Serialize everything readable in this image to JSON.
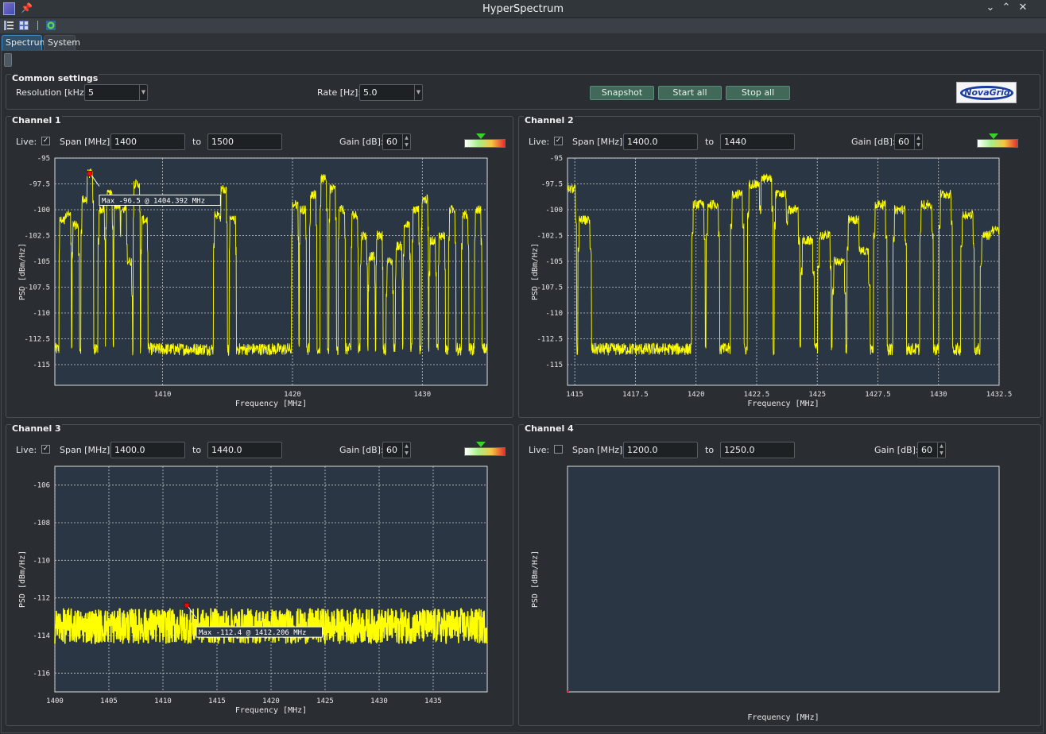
{
  "app": {
    "title": "HyperSpectrum"
  },
  "tabs": [
    {
      "label": "Spectrum",
      "active": true
    },
    {
      "label": "System",
      "active": false
    }
  ],
  "common": {
    "title": "Common settings",
    "resolution_label": "Resolution [kHz]:",
    "resolution_value": "5",
    "rate_label": "Rate [Hz]:",
    "rate_value": "5.0",
    "snapshot": "Snapshot",
    "start_all": "Start all",
    "stop_all": "Stop all",
    "logo_text": "NovaGrid"
  },
  "labels": {
    "live": "Live:",
    "span": "Span [MHz]:",
    "to": "to",
    "gain": "Gain [dB]:"
  },
  "channels": [
    {
      "title": "Channel 1",
      "live": true,
      "span_from": "1400",
      "span_to": "1500",
      "gain": "60"
    },
    {
      "title": "Channel 2",
      "live": true,
      "span_from": "1400.0",
      "span_to": "1440",
      "gain": "60"
    },
    {
      "title": "Channel 3",
      "live": true,
      "span_from": "1400.0",
      "span_to": "1440.0",
      "gain": "60"
    },
    {
      "title": "Channel 4",
      "live": false,
      "span_from": "1200.0",
      "span_to": "1250.0",
      "gain": "60"
    }
  ],
  "colors": {
    "plot_bg": "#2b3644",
    "trace": "#ffff00",
    "grid": "#c8c8c8",
    "marker": "#ff0000"
  },
  "chart_data": [
    {
      "type": "line",
      "xlabel": "Frequency [MHz]",
      "ylabel": "PSD [dBm/Hz]",
      "xlim": [
        1401.7,
        1435
      ],
      "ylim": [
        -117,
        -95
      ],
      "xticks": [
        1410,
        1420,
        1430
      ],
      "yticks": [
        -95,
        -97.5,
        -100,
        -102.5,
        -105,
        -107.5,
        -110,
        -112.5,
        -115
      ],
      "noise_floor": -113.5,
      "channels": [
        [
          1402.3,
          -101
        ],
        [
          1402.7,
          -100.5
        ],
        [
          1403.3,
          -101.5
        ],
        [
          1404.0,
          -99
        ],
        [
          1404.4,
          -96.5
        ],
        [
          1405.3,
          -100
        ],
        [
          1405.9,
          -98.5
        ],
        [
          1406.5,
          -99.5
        ],
        [
          1407.0,
          -100
        ],
        [
          1407.4,
          -105
        ],
        [
          1408.0,
          -97.5
        ],
        [
          1408.6,
          -101
        ],
        [
          1414.2,
          -100.5
        ],
        [
          1414.7,
          -98
        ],
        [
          1415.4,
          -101
        ],
        [
          1420.2,
          -99.5
        ],
        [
          1420.8,
          -100
        ],
        [
          1421.6,
          -98.5
        ],
        [
          1422.4,
          -97
        ],
        [
          1423.1,
          -98
        ],
        [
          1423.8,
          -100
        ],
        [
          1424.8,
          -100.5
        ],
        [
          1425.5,
          -102.5
        ],
        [
          1426.1,
          -104.5
        ],
        [
          1426.7,
          -102.5
        ],
        [
          1427.5,
          -105
        ],
        [
          1428.2,
          -103.5
        ],
        [
          1428.8,
          -101.5
        ],
        [
          1429.5,
          -100
        ],
        [
          1430.2,
          -99
        ],
        [
          1430.8,
          -103
        ],
        [
          1431.5,
          -102.5
        ],
        [
          1432.3,
          -100
        ],
        [
          1433.3,
          -100.5
        ],
        [
          1434.3,
          -100
        ]
      ],
      "marker": {
        "label": "Max -96.5 @ 1404.392 MHz",
        "x": 1404.392,
        "y": -96.5
      }
    },
    {
      "type": "line",
      "xlabel": "Frequency [MHz]",
      "ylabel": "PSD [dBm/Hz]",
      "xlim": [
        1414.7,
        1432.5
      ],
      "ylim": [
        -117,
        -95
      ],
      "xticks": [
        1415,
        1417.5,
        1420,
        1422.5,
        1425,
        1427.5,
        1430,
        1432.5
      ],
      "yticks": [
        -95,
        -97.5,
        -100,
        -102.5,
        -105,
        -107.5,
        -110,
        -112.5,
        -115
      ],
      "noise_floor": -113.5,
      "channels": [
        [
          1414.8,
          -98
        ],
        [
          1415.4,
          -101
        ],
        [
          1420.1,
          -99.5
        ],
        [
          1420.7,
          -99.5
        ],
        [
          1421.7,
          -98.5
        ],
        [
          1422.4,
          -97.5
        ],
        [
          1422.9,
          -97
        ],
        [
          1423.5,
          -98.5
        ],
        [
          1424.0,
          -100
        ],
        [
          1424.6,
          -103
        ],
        [
          1425.3,
          -102.5
        ],
        [
          1425.9,
          -105
        ],
        [
          1426.5,
          -101
        ],
        [
          1426.9,
          -104
        ],
        [
          1427.6,
          -99.5
        ],
        [
          1428.4,
          -100
        ],
        [
          1429.5,
          -99.5
        ],
        [
          1430.3,
          -98.5
        ],
        [
          1431.2,
          -100.5
        ],
        [
          1432.0,
          -102.5
        ],
        [
          1432.4,
          -102
        ]
      ],
      "marker": null
    },
    {
      "type": "line",
      "xlabel": "Frequency [MHz]",
      "ylabel": "PSD [dBm/Hz]",
      "xlim": [
        1400,
        1440
      ],
      "ylim": [
        -117,
        -105
      ],
      "xticks": [
        1400,
        1405,
        1410,
        1415,
        1420,
        1425,
        1430,
        1435
      ],
      "yticks": [
        -106,
        -108,
        -110,
        -112,
        -114,
        -116
      ],
      "noise_floor": -113.5,
      "channels": [],
      "marker": {
        "label": "Max -112.4 @ 1412.206 MHz",
        "x": 1412.206,
        "y": -112.4
      }
    },
    {
      "type": "line",
      "xlabel": "Frequency [MHz]",
      "ylabel": "PSD [dBm/Hz]",
      "xlim": [],
      "ylim": [],
      "xticks": [],
      "yticks": [],
      "noise_floor": null,
      "channels": [],
      "marker": null
    }
  ]
}
